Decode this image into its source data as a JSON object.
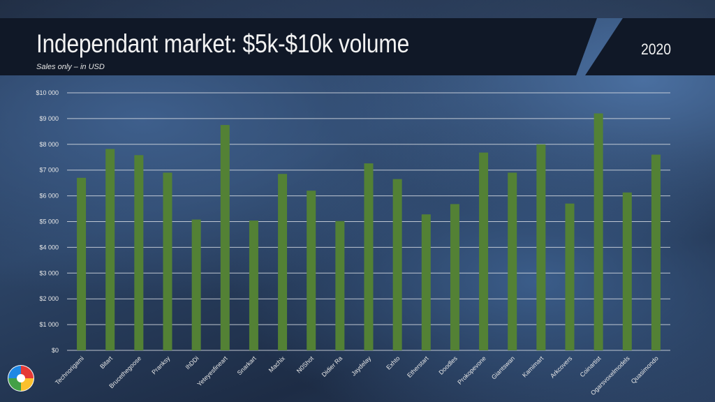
{
  "header": {
    "title": "Independant market: $5k-$10k volume",
    "subtitle": "Sales only – in USD",
    "year": "2020"
  },
  "chart_data": {
    "type": "bar",
    "title": "Independant market: $5k-$10k volume",
    "subtitle": "Sales only – in USD",
    "xlabel": "",
    "ylabel": "",
    "ylim": [
      0,
      10000
    ],
    "yticks": [
      0,
      1000,
      2000,
      3000,
      4000,
      5000,
      6000,
      7000,
      8000,
      9000,
      10000
    ],
    "ytick_labels": [
      "$0",
      "$1 000",
      "$2 000",
      "$3 000",
      "$4 000",
      "$5 000",
      "$6 000",
      "$7 000",
      "$8 000",
      "$9 000",
      "$10 000"
    ],
    "grid": true,
    "bar_color": "#538135",
    "categories": [
      "Technorigami",
      "Bitart",
      "Brucethegoose",
      "Pranksy",
      "IhDDi",
      "Yeteyesfineart",
      "Snarkart",
      "Machix",
      "N0Shot",
      "Didier Ra",
      "Jaydelay",
      "Exhto",
      "Etherstart",
      "Doodles",
      "Prokopevone",
      "Giantswan",
      "Kamimart",
      "Arkcovers",
      "Coinartist",
      "Ogarsvoxelmodels",
      "Quasimondo"
    ],
    "values": [
      6700,
      7820,
      7580,
      6900,
      5080,
      8750,
      5040,
      6850,
      6200,
      5020,
      7260,
      6650,
      5280,
      5680,
      7680,
      6900,
      8000,
      5700,
      9200,
      6130,
      7600
    ]
  },
  "logo": {
    "colors": [
      "#e53935",
      "#fbc02d",
      "#43a047",
      "#1e88e5"
    ]
  }
}
